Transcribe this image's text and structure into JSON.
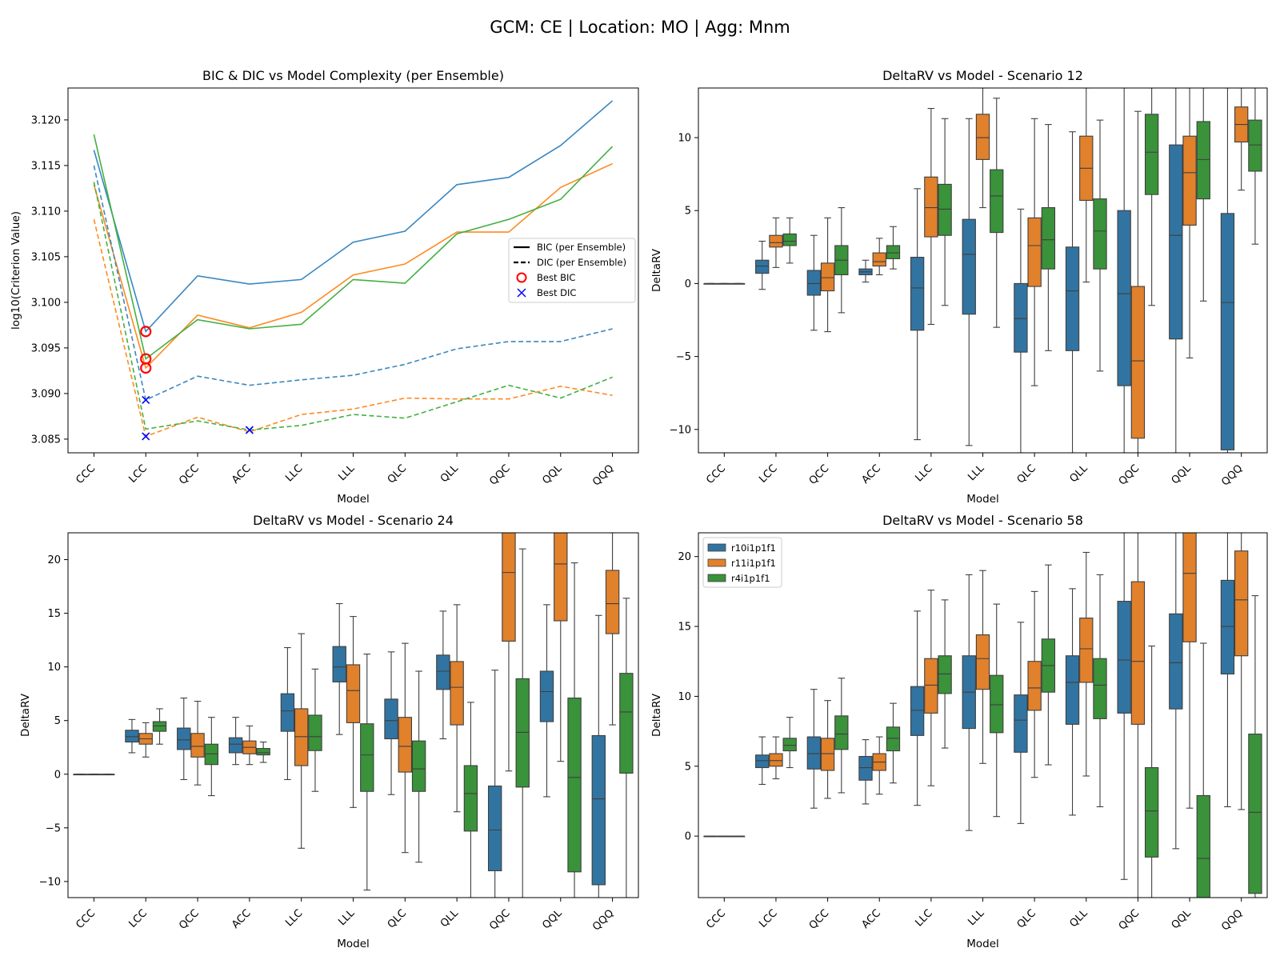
{
  "figure": {
    "suptitle": "GCM: CE | Location: MO | Agg: Mnm"
  },
  "colors": {
    "r10i1p1f1": "#3274a1",
    "r11i1p1f1": "#e1812c",
    "r4i1p1f1": "#3a923a",
    "line_blue": "#3a87c0",
    "line_orange": "#ff8a20",
    "line_green": "#44b044",
    "best_bic": "#ff0000",
    "best_dic": "#0000ff"
  },
  "chart_data": [
    {
      "type": "line",
      "title": "BIC & DIC vs Model Complexity (per Ensemble)",
      "xlabel": "Model",
      "ylabel": "log10(Criterion Value)",
      "categories": [
        "CCC",
        "LCC",
        "QCC",
        "ACC",
        "LLC",
        "LLL",
        "QLC",
        "QLL",
        "QQC",
        "QQL",
        "QQQ"
      ],
      "ylim": [
        3.0835,
        3.1235
      ],
      "yticks": [
        3.085,
        3.09,
        3.095,
        3.1,
        3.105,
        3.11,
        3.115,
        3.12
      ],
      "yticklabels": [
        "3.085",
        "3.090",
        "3.095",
        "3.100",
        "3.105",
        "3.110",
        "3.115",
        "3.120"
      ],
      "legend": {
        "position": "center-right",
        "entries": [
          "BIC (per Ensemble)",
          "DIC (per Ensemble)",
          "Best BIC",
          "Best DIC"
        ]
      },
      "series": [
        {
          "kind": "BIC",
          "color": "line_blue",
          "values": [
            3.1167,
            3.0968,
            3.1029,
            3.102,
            3.1025,
            3.1066,
            3.1078,
            3.1129,
            3.1137,
            3.1172,
            3.1221
          ]
        },
        {
          "kind": "BIC",
          "color": "line_orange",
          "values": [
            3.1129,
            3.0928,
            3.0986,
            3.0972,
            3.0989,
            3.103,
            3.1042,
            3.1077,
            3.1077,
            3.1126,
            3.1152
          ]
        },
        {
          "kind": "BIC",
          "color": "line_green",
          "values": [
            3.1184,
            3.0938,
            3.0981,
            3.0971,
            3.0976,
            3.1025,
            3.1021,
            3.1075,
            3.1091,
            3.1113,
            3.1171
          ]
        },
        {
          "kind": "DIC",
          "color": "line_blue",
          "values": [
            3.115,
            3.0893,
            3.0919,
            3.0909,
            3.0915,
            3.092,
            3.0932,
            3.0949,
            3.0957,
            3.0957,
            3.0971
          ]
        },
        {
          "kind": "DIC",
          "color": "line_orange",
          "values": [
            3.1091,
            3.0853,
            3.0874,
            3.0858,
            3.0877,
            3.0883,
            3.0895,
            3.0894,
            3.0894,
            3.0908,
            3.0898
          ]
        },
        {
          "kind": "DIC",
          "color": "line_green",
          "values": [
            3.1132,
            3.0861,
            3.087,
            3.086,
            3.0865,
            3.0877,
            3.0873,
            3.0891,
            3.0909,
            3.0895,
            3.0918
          ]
        }
      ],
      "best_bic": [
        {
          "x": "LCC",
          "y": 3.0968
        },
        {
          "x": "LCC",
          "y": 3.0938
        },
        {
          "x": "LCC",
          "y": 3.0928
        }
      ],
      "best_dic": [
        {
          "x": "LCC",
          "y": 3.0893
        },
        {
          "x": "LCC",
          "y": 3.0853
        },
        {
          "x": "ACC",
          "y": 3.086
        }
      ]
    },
    {
      "type": "boxplot",
      "title": "DeltaRV vs Model - Scenario 12",
      "xlabel": "Model",
      "ylabel": "DeltaRV",
      "categories": [
        "CCC",
        "LCC",
        "QCC",
        "ACC",
        "LLC",
        "LLL",
        "QLC",
        "QLL",
        "QQC",
        "QQL",
        "QQQ"
      ],
      "ylim": [
        -11.6,
        13.4
      ],
      "yticks": [
        -10,
        -5,
        0,
        5,
        10
      ],
      "yticklabels": [
        "−10",
        "−5",
        "0",
        "5",
        "10"
      ],
      "series_names": [
        "r10i1p1f1",
        "r11i1p1f1",
        "r4i1p1f1"
      ],
      "boxes": [
        [
          [
            0,
            0,
            0,
            0,
            0
          ],
          [
            0,
            0,
            0,
            0,
            0
          ],
          [
            0,
            0,
            0,
            0,
            0
          ]
        ],
        [
          [
            -0.4,
            0.7,
            1.2,
            1.6,
            2.9
          ],
          [
            1.1,
            2.5,
            2.8,
            3.3,
            4.5
          ],
          [
            1.4,
            2.6,
            2.9,
            3.4,
            4.5
          ]
        ],
        [
          [
            -3.2,
            -0.8,
            0.0,
            0.9,
            3.3
          ],
          [
            -3.3,
            -0.5,
            0.4,
            1.4,
            4.5
          ],
          [
            -2.0,
            0.6,
            1.6,
            2.6,
            5.2
          ]
        ],
        [
          [
            0.1,
            0.6,
            0.8,
            1.0,
            1.6
          ],
          [
            0.6,
            1.2,
            1.5,
            2.1,
            3.1
          ],
          [
            1.0,
            1.7,
            2.1,
            2.6,
            3.9
          ]
        ],
        [
          [
            -10.7,
            -3.2,
            -0.3,
            1.8,
            6.5
          ],
          [
            -2.8,
            3.2,
            5.2,
            7.3,
            12.0
          ],
          [
            -1.5,
            3.3,
            5.1,
            6.8,
            11.3
          ]
        ],
        [
          [
            -11.1,
            -2.1,
            2.0,
            4.4,
            11.3
          ],
          [
            5.2,
            8.5,
            10.0,
            11.6,
            13.4
          ],
          [
            -3.0,
            3.5,
            6.0,
            7.8,
            12.7
          ]
        ],
        [
          [
            -11.6,
            -4.7,
            -2.4,
            0.0,
            5.1
          ],
          [
            -7.0,
            -0.2,
            2.6,
            4.5,
            11.3
          ],
          [
            -4.6,
            1.0,
            3.0,
            5.2,
            10.9
          ]
        ],
        [
          [
            -11.6,
            -4.6,
            -0.5,
            2.5,
            10.4
          ],
          [
            0.1,
            5.7,
            7.9,
            10.1,
            13.4
          ],
          [
            -6.0,
            1.0,
            3.6,
            5.8,
            11.2
          ]
        ],
        [
          [
            -11.6,
            -7.0,
            -0.7,
            5.0,
            13.4
          ],
          [
            -11.6,
            -10.6,
            -5.3,
            -0.2,
            11.8
          ],
          [
            -1.5,
            6.1,
            9.0,
            11.6,
            13.4
          ]
        ],
        [
          [
            -11.6,
            -3.8,
            3.3,
            9.5,
            13.4
          ],
          [
            -5.1,
            4.0,
            7.6,
            10.1,
            13.4
          ],
          [
            -1.2,
            5.8,
            8.5,
            11.1,
            13.4
          ]
        ],
        [
          [
            -11.6,
            -11.4,
            -1.3,
            4.8,
            13.4
          ],
          [
            6.4,
            9.7,
            10.9,
            12.1,
            13.4
          ],
          [
            2.7,
            7.7,
            9.5,
            11.2,
            13.4
          ]
        ]
      ]
    },
    {
      "type": "boxplot",
      "title": "DeltaRV vs Model - Scenario 24",
      "xlabel": "Model",
      "ylabel": "DeltaRV",
      "categories": [
        "CCC",
        "LCC",
        "QCC",
        "ACC",
        "LLC",
        "LLL",
        "QLC",
        "QLL",
        "QQC",
        "QQL",
        "QQQ"
      ],
      "ylim": [
        -11.5,
        22.5
      ],
      "yticks": [
        -10,
        -5,
        0,
        5,
        10,
        15,
        20
      ],
      "yticklabels": [
        "−10",
        "−5",
        "0",
        "5",
        "10",
        "15",
        "20"
      ],
      "series_names": [
        "r10i1p1f1",
        "r11i1p1f1",
        "r4i1p1f1"
      ],
      "boxes": [
        [
          [
            0,
            0,
            0,
            0,
            0
          ],
          [
            0,
            0,
            0,
            0,
            0
          ],
          [
            0,
            0,
            0,
            0,
            0
          ]
        ],
        [
          [
            2.0,
            3.0,
            3.5,
            4.1,
            5.1
          ],
          [
            1.6,
            2.8,
            3.3,
            3.8,
            4.8
          ],
          [
            2.8,
            4.0,
            4.5,
            4.9,
            6.1
          ]
        ],
        [
          [
            -0.5,
            2.3,
            3.2,
            4.3,
            7.1
          ],
          [
            -1.0,
            1.6,
            2.6,
            3.8,
            6.8
          ],
          [
            -2.0,
            0.9,
            1.9,
            2.8,
            5.3
          ]
        ],
        [
          [
            0.9,
            2.0,
            2.8,
            3.4,
            5.3
          ],
          [
            0.9,
            1.9,
            2.5,
            3.1,
            4.5
          ],
          [
            1.1,
            1.8,
            2.0,
            2.4,
            3.0
          ]
        ],
        [
          [
            -0.5,
            4.0,
            5.9,
            7.5,
            11.8
          ],
          [
            -6.9,
            0.8,
            3.5,
            6.1,
            13.1
          ],
          [
            -1.6,
            2.2,
            3.5,
            5.5,
            9.8
          ]
        ],
        [
          [
            3.7,
            8.6,
            10.0,
            11.9,
            15.9
          ],
          [
            -3.1,
            4.8,
            7.8,
            10.2,
            14.7
          ],
          [
            -10.8,
            -1.6,
            1.8,
            4.7,
            11.2
          ]
        ],
        [
          [
            -1.9,
            3.3,
            5.0,
            7.0,
            11.4
          ],
          [
            -7.3,
            0.2,
            2.6,
            5.3,
            12.2
          ],
          [
            -8.2,
            -1.6,
            0.5,
            3.1,
            9.6
          ]
        ],
        [
          [
            3.3,
            7.9,
            9.6,
            11.1,
            15.2
          ],
          [
            -3.5,
            4.6,
            8.1,
            10.5,
            15.8
          ],
          [
            -11.5,
            -5.3,
            -1.8,
            0.8,
            6.7
          ]
        ],
        [
          [
            -11.5,
            -9.0,
            -5.2,
            -1.1,
            9.7
          ],
          [
            0.3,
            12.4,
            18.8,
            22.5,
            22.5
          ],
          [
            -11.5,
            -1.2,
            3.9,
            8.9,
            21.0
          ]
        ],
        [
          [
            -2.1,
            4.9,
            7.7,
            9.6,
            15.8
          ],
          [
            1.2,
            14.3,
            19.6,
            22.5,
            22.5
          ],
          [
            -11.5,
            -9.1,
            -0.3,
            7.1,
            19.7
          ]
        ],
        [
          [
            -11.5,
            -10.3,
            -2.3,
            3.6,
            14.8
          ],
          [
            4.6,
            13.1,
            15.9,
            19.0,
            22.5
          ],
          [
            -11.5,
            0.1,
            5.8,
            9.4,
            16.4
          ]
        ]
      ]
    },
    {
      "type": "boxplot",
      "title": "DeltaRV vs Model - Scenario 58",
      "xlabel": "Model",
      "ylabel": "DeltaRV",
      "categories": [
        "CCC",
        "LCC",
        "QCC",
        "ACC",
        "LLC",
        "LLL",
        "QLC",
        "QLL",
        "QQC",
        "QQL",
        "QQQ"
      ],
      "ylim": [
        -4.4,
        21.7
      ],
      "yticks": [
        0,
        5,
        10,
        15,
        20
      ],
      "yticklabels": [
        "0",
        "5",
        "10",
        "15",
        "20"
      ],
      "series_names": [
        "r10i1p1f1",
        "r11i1p1f1",
        "r4i1p1f1"
      ],
      "legend": {
        "position": "upper-left",
        "entries": [
          "r10i1p1f1",
          "r11i1p1f1",
          "r4i1p1f1"
        ]
      },
      "boxes": [
        [
          [
            0,
            0,
            0,
            0,
            0
          ],
          [
            0,
            0,
            0,
            0,
            0
          ],
          [
            0,
            0,
            0,
            0,
            0
          ]
        ],
        [
          [
            3.7,
            4.9,
            5.4,
            5.8,
            7.1
          ],
          [
            4.1,
            5.0,
            5.4,
            5.9,
            7.1
          ],
          [
            4.9,
            6.1,
            6.5,
            7.0,
            8.5
          ]
        ],
        [
          [
            2.0,
            4.8,
            5.9,
            7.1,
            10.5
          ],
          [
            2.7,
            4.7,
            5.9,
            7.0,
            9.7
          ],
          [
            3.1,
            6.2,
            7.3,
            8.6,
            11.3
          ]
        ],
        [
          [
            2.3,
            4.0,
            4.9,
            5.7,
            6.9
          ],
          [
            3.0,
            4.7,
            5.3,
            5.9,
            7.1
          ],
          [
            3.8,
            6.1,
            7.0,
            7.8,
            9.5
          ]
        ],
        [
          [
            2.2,
            7.2,
            9.0,
            10.7,
            16.1
          ],
          [
            3.6,
            8.8,
            10.8,
            12.7,
            17.6
          ],
          [
            6.3,
            10.2,
            11.6,
            12.9,
            16.9
          ]
        ],
        [
          [
            0.4,
            7.7,
            10.3,
            12.9,
            18.7
          ],
          [
            5.2,
            10.5,
            12.7,
            14.4,
            19.0
          ],
          [
            1.4,
            7.4,
            9.4,
            11.5,
            16.6
          ]
        ],
        [
          [
            0.9,
            6.0,
            8.3,
            10.1,
            15.3
          ],
          [
            4.2,
            9.0,
            10.6,
            12.5,
            17.5
          ],
          [
            5.1,
            10.3,
            12.2,
            14.1,
            19.4
          ]
        ],
        [
          [
            1.5,
            8.0,
            11.0,
            12.9,
            17.7
          ],
          [
            4.3,
            11.0,
            13.4,
            15.6,
            20.3
          ],
          [
            2.1,
            8.4,
            10.8,
            12.7,
            18.7
          ]
        ],
        [
          [
            -3.1,
            8.8,
            12.6,
            16.8,
            21.7
          ],
          [
            -4.4,
            8.0,
            12.5,
            18.2,
            21.7
          ],
          [
            -4.4,
            -1.5,
            1.8,
            4.9,
            13.6
          ]
        ],
        [
          [
            -0.9,
            9.1,
            12.4,
            15.9,
            21.7
          ],
          [
            2.0,
            13.9,
            18.8,
            21.7,
            21.7
          ],
          [
            -4.4,
            -4.4,
            -1.6,
            2.9,
            13.8
          ]
        ],
        [
          [
            2.1,
            11.6,
            15.0,
            18.3,
            21.7
          ],
          [
            1.9,
            12.9,
            16.9,
            20.4,
            21.7
          ],
          [
            -4.4,
            -4.1,
            1.7,
            7.3,
            17.2
          ]
        ]
      ]
    }
  ]
}
